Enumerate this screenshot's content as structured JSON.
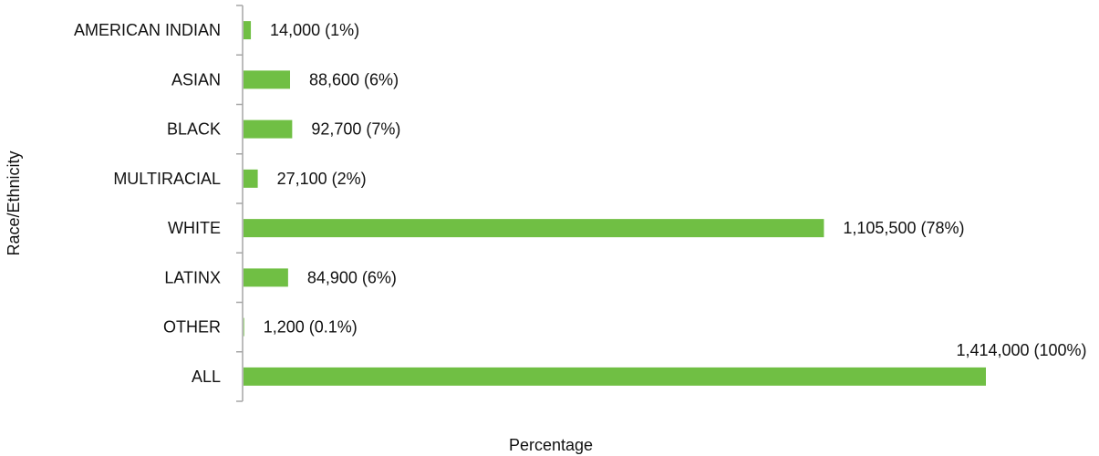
{
  "chart_data": {
    "type": "bar",
    "orientation": "horizontal",
    "categories": [
      "AMERICAN INDIAN",
      "ASIAN",
      "BLACK",
      "MULTIRACIAL",
      "WHITE",
      "LATINX",
      "OTHER",
      "ALL"
    ],
    "values": [
      14000,
      88600,
      92700,
      27100,
      1105500,
      84900,
      1200,
      1414000
    ],
    "data_labels": [
      "14,000 (1%)",
      "88,600 (6%)",
      "92,700 (7%)",
      "27,100 (2%)",
      "1,105,500  (78%)",
      "84,900 (6%)",
      "1,200 (0.1%)",
      "1,414,000 (100%)"
    ],
    "xlabel": "Percentage",
    "ylabel": "Race/Ethnicity",
    "xlim": [
      0,
      1414000
    ],
    "grid": false,
    "legend": "none",
    "bar_color": "#70bf44",
    "axis_color": "#a6a6a6"
  }
}
